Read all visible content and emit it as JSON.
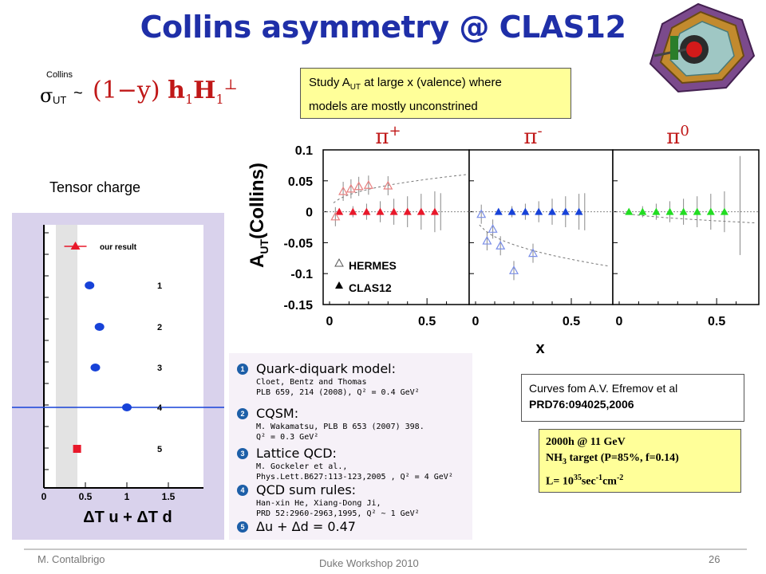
{
  "title": "Collins asymmetry @ CLAS12",
  "formula": {
    "sup": "Collins",
    "sigma": "σ",
    "sub": "UT",
    "tilde": "~",
    "expr": "(1−y)",
    "h": "h",
    "h_sub": "1",
    "H": "H",
    "H_sub": "1",
    "H_sup": "⊥"
  },
  "study_box": {
    "pre": "Study A",
    "sub": "UT",
    "post": " at large x (valence)  where",
    "line2": "models are mostly  unconstrined"
  },
  "tensor": {
    "label": "Tensor charge",
    "items": [
      "our result",
      "1",
      "2",
      "3",
      "4",
      "5"
    ],
    "xticks": [
      "0",
      "0.5",
      "1",
      "1.5"
    ],
    "xlabel": "ΔT u + ΔT d",
    "values": [
      0.38,
      0.55,
      0.67,
      0.62,
      1.0,
      0.4
    ],
    "colors": {
      "result": "#e8182a",
      "model": "#1742d8",
      "line": "#1742d8",
      "band": "#e3e3e3"
    }
  },
  "chart_data": {
    "type": "scatter",
    "ylabel": "AUT(Collins)",
    "xlabel": "x",
    "yticks": [
      "0.1",
      "0.05",
      "0",
      "-0.05",
      "-0.1",
      "-0.15"
    ],
    "ylim": [
      -0.15,
      0.1
    ],
    "panels": [
      {
        "label": "π",
        "sup": "+",
        "xlim": [
          0,
          0.7
        ],
        "xticks": [
          "0",
          "0.5"
        ],
        "color": "#e8182a",
        "clas12_x": [
          0.05,
          0.12,
          0.19,
          0.26,
          0.33,
          0.4,
          0.47,
          0.54
        ],
        "clas12_y": [
          0,
          0,
          0,
          0,
          0,
          0,
          0,
          0
        ],
        "hermes_x": [
          0.03,
          0.07,
          0.11,
          0.15,
          0.2,
          0.3
        ],
        "hermes_y": [
          -0.008,
          0.033,
          0.037,
          0.041,
          0.043,
          0.042
        ]
      },
      {
        "label": "π",
        "sup": "-",
        "xlim": [
          0,
          0.7
        ],
        "xticks": [
          "0",
          "0.5"
        ],
        "color": "#1742d8",
        "clas12_x": [
          0.12,
          0.19,
          0.26,
          0.33,
          0.4,
          0.47,
          0.54
        ],
        "clas12_y": [
          0,
          0,
          0,
          0,
          0,
          0,
          0
        ],
        "hermes_x": [
          0.03,
          0.06,
          0.09,
          0.13,
          0.2,
          0.3
        ],
        "hermes_y": [
          -0.004,
          -0.047,
          -0.028,
          -0.055,
          -0.095,
          -0.067
        ]
      },
      {
        "label": "π",
        "sup": "0",
        "xlim": [
          0,
          0.7
        ],
        "xticks": [
          "0",
          "0.5"
        ],
        "color": "#22dd22",
        "clas12_x": [
          0.05,
          0.12,
          0.19,
          0.26,
          0.33,
          0.4,
          0.47,
          0.54
        ],
        "clas12_y": [
          0,
          0,
          0,
          0,
          0,
          0,
          0,
          0
        ],
        "hermes_x": [],
        "hermes_y": []
      }
    ],
    "legend": [
      "HERMES",
      "CLAS12"
    ]
  },
  "models": [
    {
      "num": "1",
      "title": "Quark-diquark model:",
      "ref1": "Cloet, Bentz and Thomas",
      "ref2": "PLB 659, 214 (2008), Q² = 0.4 GeV²"
    },
    {
      "num": "2",
      "title": "CQSM:",
      "ref1": "M. Wakamatsu, PLB B 653 (2007) 398.",
      "ref2": "Q² = 0.3 GeV²"
    },
    {
      "num": "3",
      "title": "Lattice QCD:",
      "ref1": "M. Gockeler et al.,",
      "ref2": "Phys.Lett.B627:113-123,2005  , Q² = 4 GeV²"
    },
    {
      "num": "4",
      "title": "QCD sum rules:",
      "ref1": "Han-xin He, Xiang-Dong Ji,",
      "ref2": "PRD 52:2960-2963,1995, Q² ~ 1 GeV²"
    },
    {
      "num": "5",
      "title": "Δu + Δd = 0.47",
      "ref1": "",
      "ref2": ""
    }
  ],
  "curves_box": {
    "line1": "Curves fom A.V. Efremov et al",
    "line2": "PRD76:094025,2006"
  },
  "run_box": {
    "line1": "2000h @ 11 GeV",
    "line2a": "NH",
    "line2sub": "3",
    "line2b": " target  (P=85%, f=0.14)",
    "line3a": "L= 10",
    "line3sup": "35",
    "line3b": "sec",
    "line3sup2": "-1",
    "line3c": "cm",
    "line3sup3": "-2"
  },
  "footer": {
    "left": "M. Contalbrigo",
    "center": "Duke Workshop 2010",
    "page": "26"
  }
}
